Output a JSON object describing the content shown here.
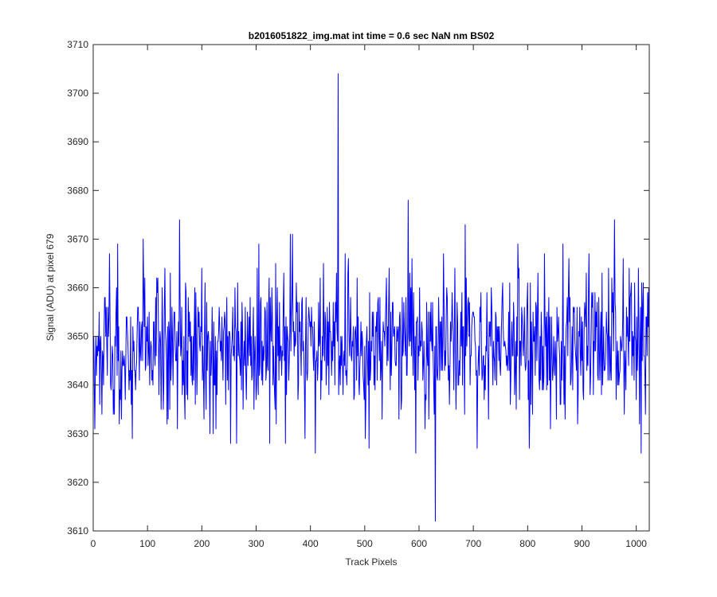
{
  "chart_data": {
    "type": "line",
    "title": "b2016051822_img.mat int time = 0.6 sec  NaN nm BS02",
    "xlabel": "Track Pixels",
    "ylabel": "Signal (ADU) at pixel 679",
    "xlim": [
      0,
      1024
    ],
    "ylim": [
      3610,
      3710
    ],
    "xticks": [
      0,
      100,
      200,
      300,
      400,
      500,
      600,
      700,
      800,
      900,
      1000
    ],
    "yticks": [
      3610,
      3620,
      3630,
      3640,
      3650,
      3660,
      3670,
      3680,
      3690,
      3700,
      3710
    ],
    "grid": false,
    "legend": "none",
    "series": [
      {
        "color": "#0000ff",
        "generated": true,
        "n_points": 1024,
        "x_start": 1,
        "x_step": 1,
        "mean": 3648,
        "stddev": 7,
        "value_range": [
          3626,
          3674
        ],
        "seed": 679,
        "spikes": [
          {
            "x": 3,
            "y": 3631
          },
          {
            "x": 11,
            "y": 3655
          },
          {
            "x": 30,
            "y": 3667
          },
          {
            "x": 45,
            "y": 3669
          },
          {
            "x": 72,
            "y": 3629
          },
          {
            "x": 92,
            "y": 3670
          },
          {
            "x": 136,
            "y": 3632
          },
          {
            "x": 159,
            "y": 3674
          },
          {
            "x": 215,
            "y": 3630
          },
          {
            "x": 253,
            "y": 3628
          },
          {
            "x": 264,
            "y": 3628
          },
          {
            "x": 305,
            "y": 3669
          },
          {
            "x": 325,
            "y": 3628
          },
          {
            "x": 363,
            "y": 3671
          },
          {
            "x": 367,
            "y": 3671
          },
          {
            "x": 390,
            "y": 3629
          },
          {
            "x": 409,
            "y": 3626
          },
          {
            "x": 451,
            "y": 3704
          },
          {
            "x": 501,
            "y": 3629
          },
          {
            "x": 580,
            "y": 3678
          },
          {
            "x": 611,
            "y": 3631
          },
          {
            "x": 630,
            "y": 3612
          },
          {
            "x": 645,
            "y": 3667
          },
          {
            "x": 685,
            "y": 3673
          },
          {
            "x": 782,
            "y": 3669
          },
          {
            "x": 842,
            "y": 3631
          },
          {
            "x": 960,
            "y": 3674
          },
          {
            "x": 1010,
            "y": 3661
          },
          {
            "x": 1017,
            "y": 3634
          },
          {
            "x": 1024,
            "y": 3640
          }
        ]
      }
    ]
  }
}
